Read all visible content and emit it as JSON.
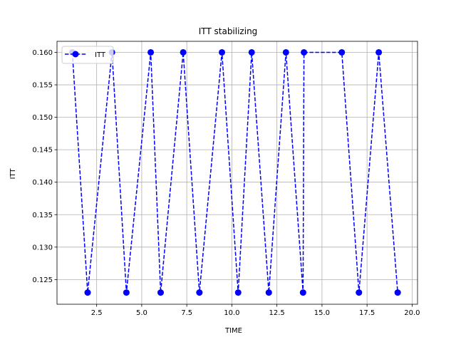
{
  "chart_data": {
    "type": "line",
    "title": "ITT stabilizing",
    "xlabel": "TIME",
    "ylabel": "ITT",
    "xlim": [
      0.3,
      20.3
    ],
    "ylim": [
      0.1212,
      0.1617
    ],
    "xticks": [
      2.5,
      5.0,
      7.5,
      10.0,
      12.5,
      15.0,
      17.5,
      20.0
    ],
    "xtick_labels": [
      "2.5",
      "5.0",
      "7.5",
      "10.0",
      "12.5",
      "15.0",
      "17.5",
      "20.0"
    ],
    "yticks": [
      0.125,
      0.13,
      0.135,
      0.14,
      0.145,
      0.15,
      0.155,
      0.16
    ],
    "ytick_labels": [
      "0.125",
      "0.130",
      "0.135",
      "0.140",
      "0.145",
      "0.150",
      "0.155",
      "0.160"
    ],
    "grid": true,
    "legend_position": "upper-left",
    "series": [
      {
        "name": "ITT",
        "color": "#0000ff",
        "linestyle": "dashed",
        "marker": "circle",
        "x": [
          1.15,
          2.0,
          3.35,
          4.15,
          5.5,
          6.05,
          7.3,
          8.2,
          9.45,
          10.35,
          11.1,
          12.05,
          13.0,
          13.95,
          14.0,
          16.1,
          17.05,
          18.15,
          19.2
        ],
        "y": [
          0.16,
          0.123,
          0.16,
          0.123,
          0.16,
          0.123,
          0.16,
          0.123,
          0.16,
          0.123,
          0.16,
          0.123,
          0.16,
          0.123,
          0.16,
          0.16,
          0.123,
          0.16,
          0.123
        ]
      }
    ]
  }
}
